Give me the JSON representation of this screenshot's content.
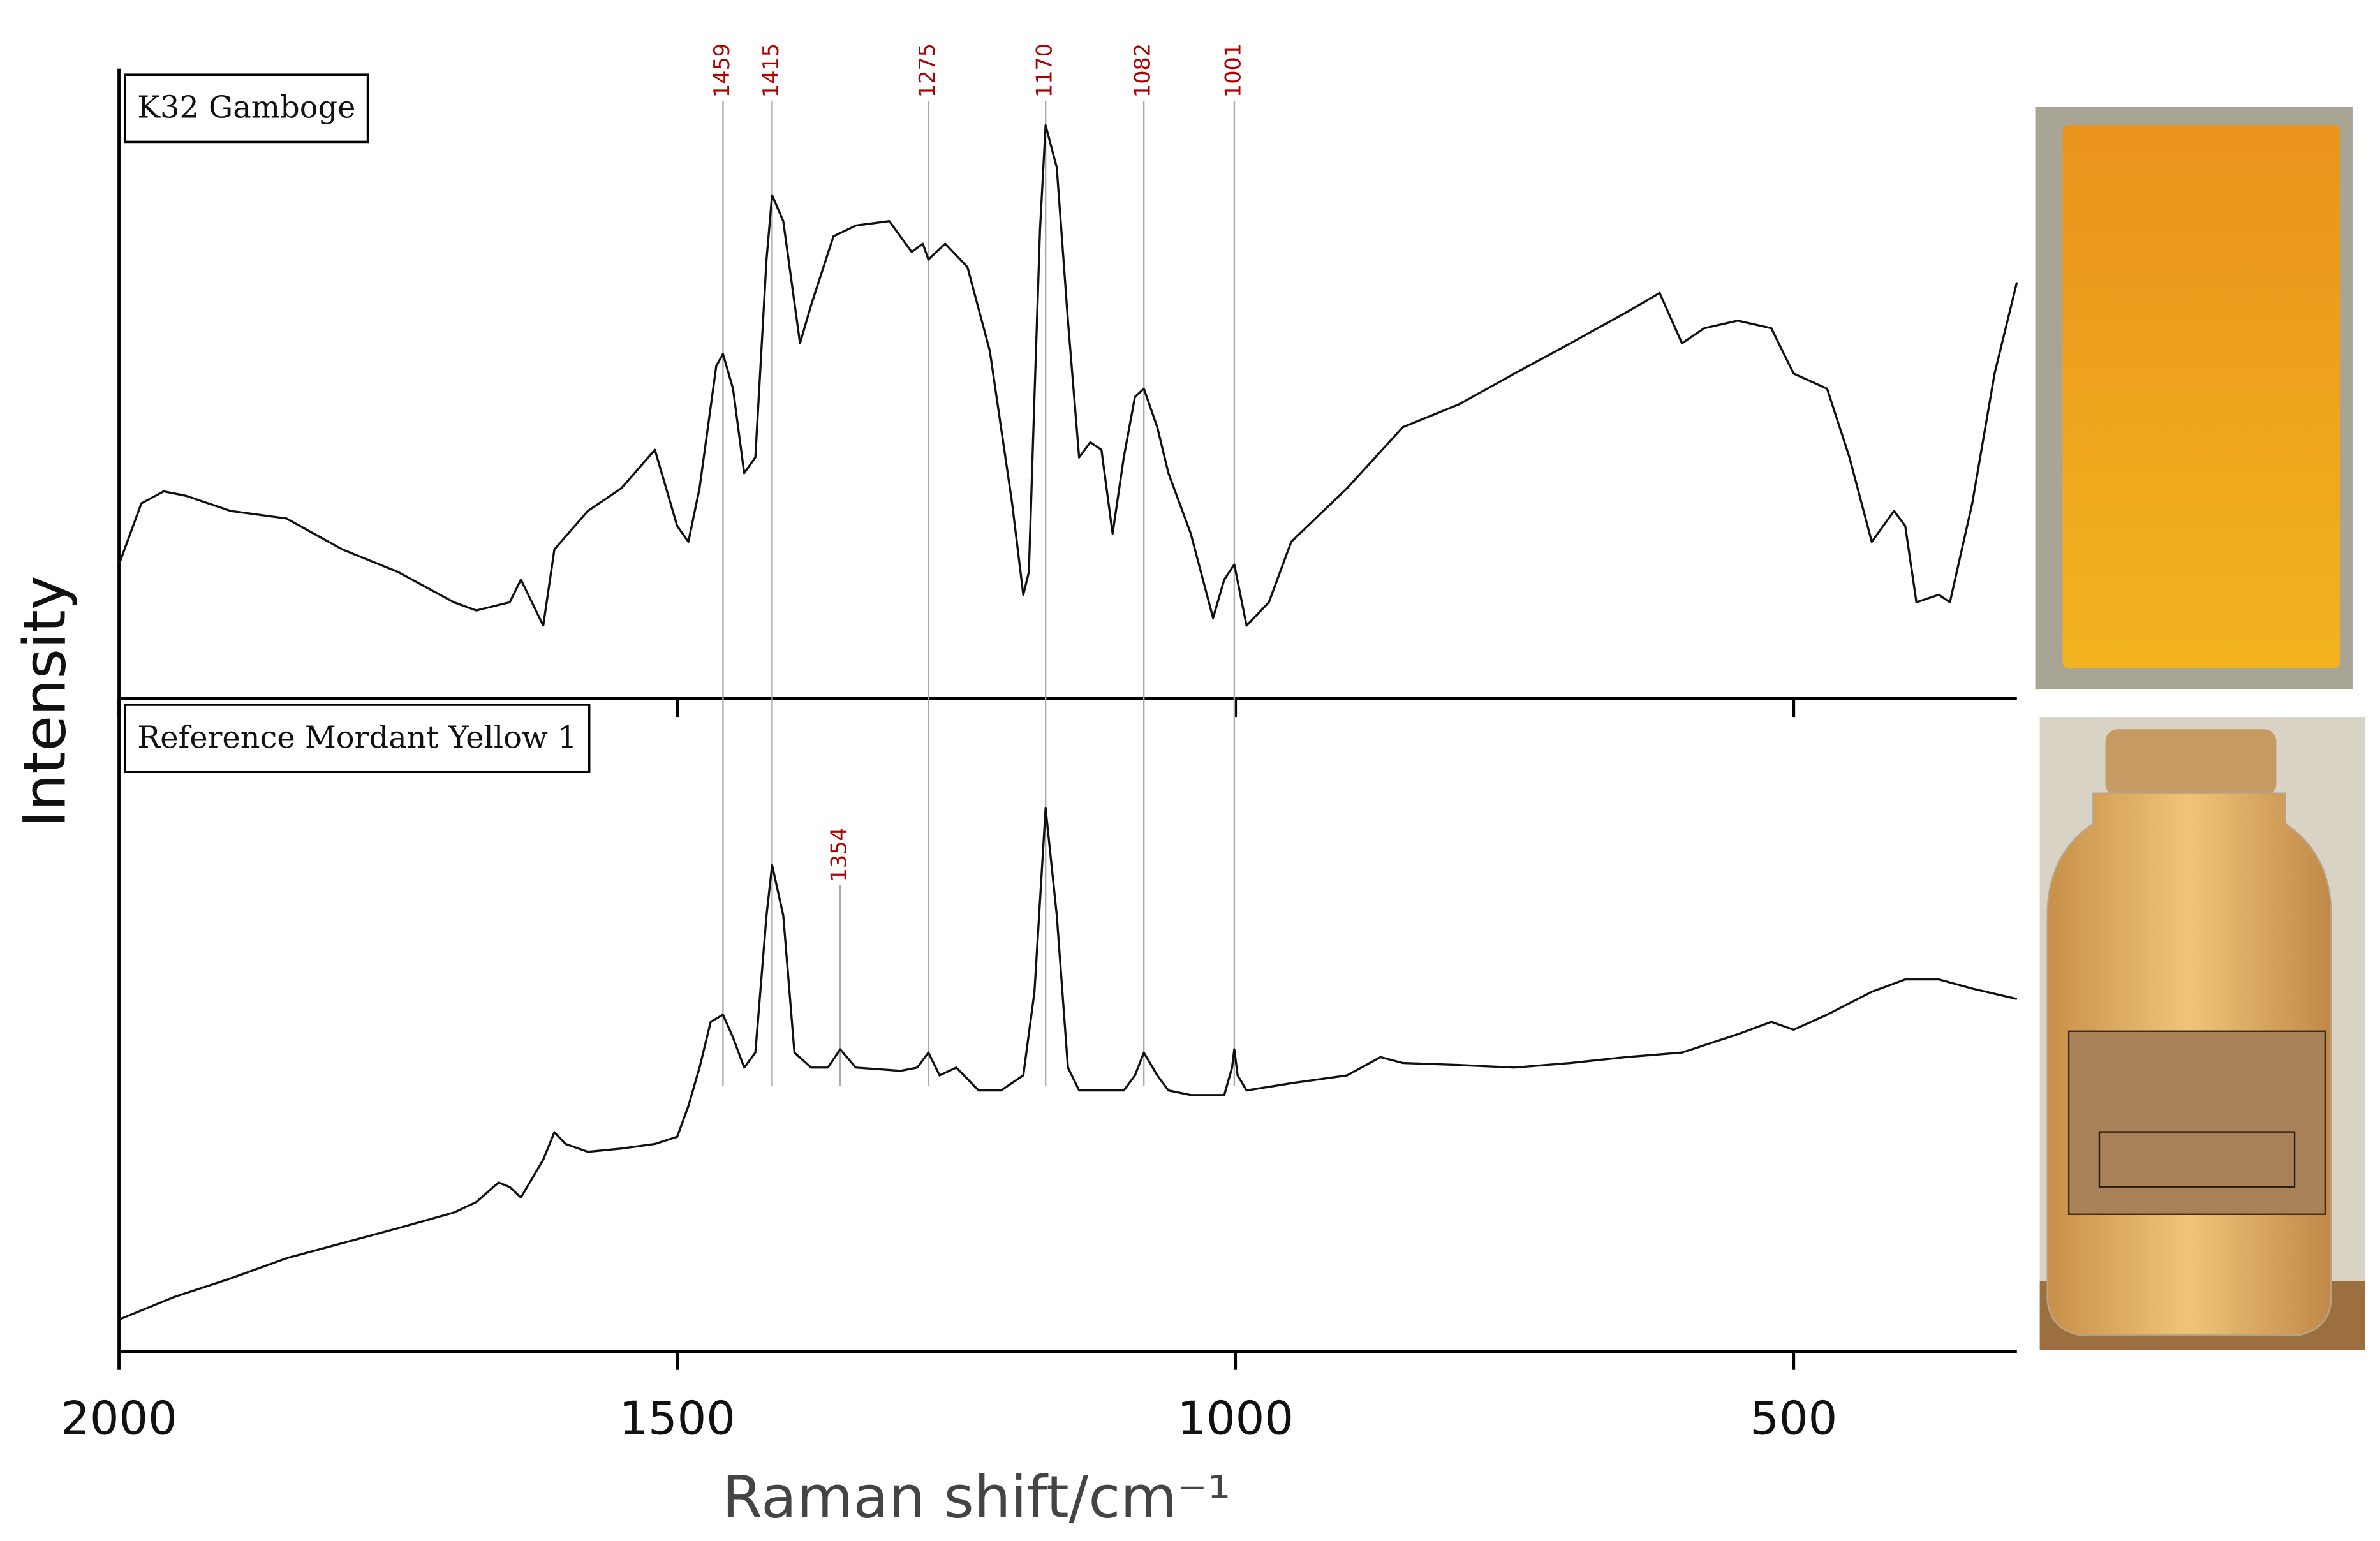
{
  "chart_data": [
    {
      "type": "line",
      "ylabel": "Intensity",
      "xlim": [
        2000,
        300
      ],
      "xticks": [
        2000,
        1500,
        1000,
        500
      ],
      "ylim": [
        0,
        100
      ],
      "peaks": [
        1459,
        1415,
        1275,
        1170,
        1082,
        1001
      ],
      "peak_color": "#b00000",
      "x": [
        2000,
        1980,
        1960,
        1940,
        1920,
        1900,
        1850,
        1800,
        1750,
        1700,
        1680,
        1650,
        1640,
        1620,
        1610,
        1580,
        1550,
        1520,
        1500,
        1490,
        1480,
        1465,
        1459,
        1450,
        1440,
        1430,
        1420,
        1415,
        1405,
        1390,
        1380,
        1360,
        1340,
        1310,
        1290,
        1280,
        1275,
        1260,
        1240,
        1220,
        1200,
        1190,
        1185,
        1180,
        1175,
        1170,
        1160,
        1150,
        1140,
        1130,
        1120,
        1110,
        1100,
        1090,
        1082,
        1070,
        1060,
        1040,
        1020,
        1010,
        1001,
        990,
        970,
        950,
        900,
        850,
        800,
        750,
        700,
        650,
        620,
        600,
        580,
        550,
        520,
        500,
        470,
        450,
        430,
        410,
        400,
        390,
        370,
        360,
        340,
        320,
        300
      ],
      "series": [
        {
          "name": "K32 Gamboge",
          "color": "#111111",
          "values": [
            21.3,
            31.0,
            32.9,
            32.2,
            31.0,
            29.8,
            28.6,
            23.7,
            20.1,
            15.3,
            14.0,
            15.3,
            18.9,
            11.6,
            23.7,
            29.8,
            33.4,
            39.5,
            27.4,
            24.9,
            33.4,
            52.8,
            54.7,
            49.2,
            35.8,
            38.3,
            69.7,
            79.9,
            75.8,
            56.4,
            62.5,
            73.4,
            75.1,
            75.8,
            70.9,
            72.2,
            69.7,
            72.2,
            68.5,
            55.2,
            31.0,
            16.5,
            20.1,
            47.9,
            74.6,
            91.0,
            84.3,
            60.0,
            38.3,
            40.7,
            39.5,
            26.2,
            38.3,
            47.9,
            49.2,
            43.1,
            35.8,
            26.2,
            12.8,
            18.9,
            21.3,
            11.6,
            15.3,
            24.9,
            33.4,
            43.1,
            46.7,
            51.6,
            56.4,
            61.3,
            64.4,
            56.4,
            58.8,
            60.0,
            58.8,
            51.6,
            49.2,
            38.3,
            24.9,
            29.8,
            27.4,
            15.3,
            16.5,
            15.3,
            31.0,
            51.6,
            66.1
          ]
        }
      ]
    },
    {
      "type": "line",
      "xlabel": "Raman shift/cm⁻¹",
      "xlim": [
        2000,
        300
      ],
      "xticks": [
        2000,
        1500,
        1000,
        500
      ],
      "ylim": [
        0,
        100
      ],
      "peaks": [
        1354
      ],
      "peak_color": "#b00000",
      "x": [
        2000,
        1950,
        1900,
        1850,
        1800,
        1750,
        1700,
        1680,
        1660,
        1650,
        1640,
        1620,
        1610,
        1600,
        1580,
        1550,
        1520,
        1500,
        1490,
        1480,
        1470,
        1459,
        1450,
        1440,
        1430,
        1420,
        1415,
        1405,
        1395,
        1380,
        1365,
        1354,
        1340,
        1300,
        1285,
        1275,
        1265,
        1250,
        1230,
        1210,
        1190,
        1180,
        1170,
        1160,
        1150,
        1140,
        1120,
        1100,
        1090,
        1082,
        1070,
        1060,
        1040,
        1010,
        1003,
        1001,
        998,
        990,
        950,
        900,
        870,
        850,
        800,
        750,
        700,
        650,
        600,
        550,
        520,
        500,
        470,
        430,
        400,
        370,
        340,
        300
      ],
      "series": [
        {
          "name": "Reference Mordant Yellow 1",
          "color": "#111111",
          "values": [
            4.9,
            8.4,
            11.2,
            14.3,
            16.6,
            18.9,
            21.3,
            22.9,
            25.9,
            25.2,
            23.6,
            29.4,
            33.6,
            31.8,
            30.6,
            31.1,
            31.8,
            32.9,
            37.6,
            43.5,
            50.5,
            51.6,
            48.1,
            43.5,
            45.8,
            66.8,
            74.5,
            66.8,
            45.8,
            43.5,
            43.5,
            46.3,
            43.5,
            43.0,
            43.5,
            45.8,
            42.3,
            43.5,
            40.0,
            40.0,
            42.3,
            55.1,
            83.2,
            66.8,
            43.5,
            40.0,
            40.0,
            40.0,
            42.3,
            45.8,
            42.3,
            40.0,
            39.3,
            39.3,
            43.5,
            46.3,
            42.3,
            40.0,
            41.1,
            42.3,
            45.1,
            44.2,
            43.9,
            43.5,
            44.2,
            45.1,
            45.8,
            48.6,
            50.5,
            49.3,
            51.6,
            55.1,
            57.0,
            57.0,
            55.6,
            54.0
          ]
        }
      ]
    }
  ]
}
